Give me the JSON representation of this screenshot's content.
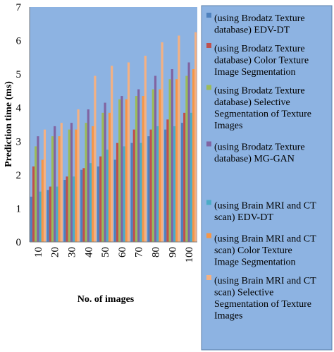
{
  "chart_data": {
    "type": "bar",
    "xlabel": "No. of images",
    "ylabel": "Prediction time (ms)",
    "ylim": [
      0,
      7
    ],
    "yticks": [
      0,
      1,
      2,
      3,
      4,
      5,
      6,
      7
    ],
    "categories": [
      "10",
      "20",
      "30",
      "40",
      "50",
      "60",
      "70",
      "80",
      "90",
      "100"
    ],
    "grid": false,
    "legend_position": "right",
    "plot_background": "#8DB3E2",
    "series": [
      {
        "name": "(using Brodatz Texture database) EDV-DT",
        "color": "#4F81BD",
        "values": [
          1.35,
          1.55,
          1.85,
          2.15,
          2.25,
          2.45,
          2.95,
          3.15,
          3.35,
          3.55
        ]
      },
      {
        "name": "(using Brodatz Texture database) Color Texture Image Segmentation",
        "color": "#C0504D",
        "values": [
          2.25,
          1.65,
          1.95,
          2.2,
          2.55,
          2.95,
          3.35,
          3.35,
          3.65,
          3.85
        ]
      },
      {
        "name": "(using Brodatz Texture database) Selective Segmentation of Texture Images",
        "color": "#9BBB59",
        "values": [
          2.85,
          3.15,
          3.35,
          3.55,
          3.85,
          4.25,
          4.35,
          4.55,
          4.85,
          4.95
        ]
      },
      {
        "name": "(using Brodatz Texture database) MG-GAN",
        "color": "#8064A2",
        "values": [
          3.15,
          3.45,
          3.55,
          3.95,
          4.15,
          4.35,
          4.55,
          4.95,
          5.15,
          5.35
        ]
      },
      {
        "name": "(using Brain MRI and CT scan) EDV-DT",
        "color": "#4BACC6",
        "values": [
          1.5,
          1.65,
          1.95,
          2.35,
          2.75,
          2.85,
          2.95,
          3.45,
          3.45,
          3.85
        ]
      },
      {
        "name": "(using Brain MRI and CT scan) Color Texture Image Segmentation",
        "color": "#F79646",
        "values": [
          2.45,
          3.15,
          3.35,
          3.45,
          3.85,
          4.25,
          4.35,
          4.55,
          4.85,
          5.15
        ]
      },
      {
        "name": "(using Brain MRI and CT scan) Selective Segmentation of Texture Images",
        "color": "#F4B183",
        "values": [
          3.35,
          3.55,
          3.95,
          4.95,
          5.25,
          5.35,
          5.55,
          5.95,
          6.15,
          6.25
        ]
      }
    ],
    "legend_lines": [
      [
        "(using Brodatz Texture",
        "database) EDV-DT"
      ],
      [
        "(using Brodatz Texture",
        "database) Color Texture",
        "Image Segmentation"
      ],
      [
        "(using Brodatz Texture",
        "database) Selective",
        "Segmentation of Texture",
        "Images"
      ],
      [
        "(using Brodatz Texture",
        "database) MG-GAN"
      ],
      [
        "(using Brain MRI and CT",
        "scan) EDV-DT"
      ],
      [
        "(using Brain MRI and CT",
        "scan) Color Texture",
        "Image Segmentation"
      ],
      [
        "(using Brain MRI and CT",
        "scan) Selective",
        "Segmentation of Texture",
        "Images"
      ]
    ]
  }
}
